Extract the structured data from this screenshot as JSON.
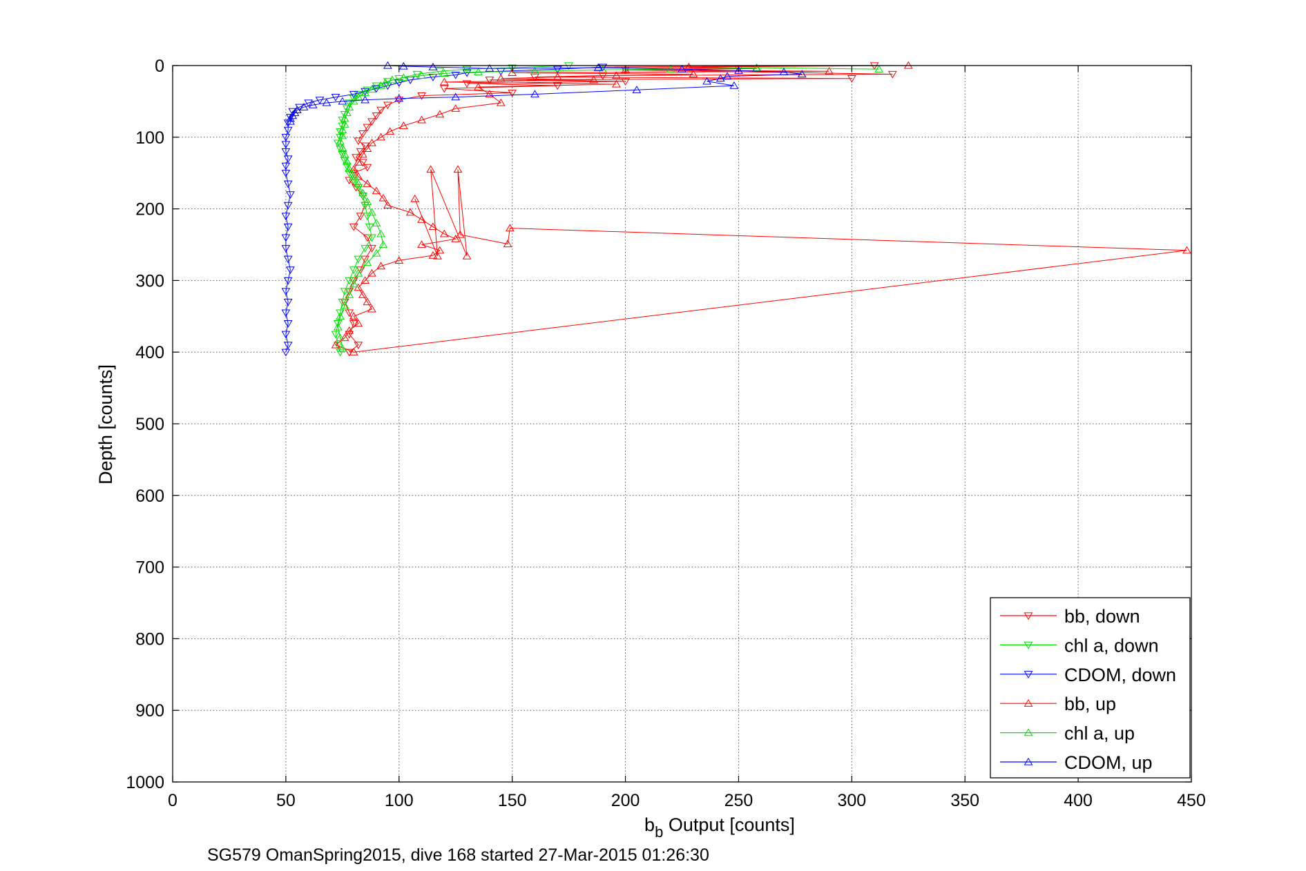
{
  "chart_data": {
    "type": "line",
    "xlabel_main": "b",
    "xlabel_sub": "b",
    "xlabel_rest": " Output [counts]",
    "ylabel": "Depth [counts]",
    "caption": "SG579 OmanSpring2015, dive 168 started 27-Mar-2015 01:26:30",
    "xlim": [
      0,
      450
    ],
    "ylim": [
      0,
      1000
    ],
    "y_reversed": true,
    "grid": true,
    "x_ticks": [
      0,
      50,
      100,
      150,
      200,
      250,
      300,
      350,
      400,
      450
    ],
    "y_ticks": [
      0,
      100,
      200,
      300,
      400,
      500,
      600,
      700,
      800,
      900,
      1000
    ],
    "x_tick_labels": [
      "0",
      "50",
      "100",
      "150",
      "200",
      "250",
      "300",
      "350",
      "400",
      "450"
    ],
    "y_tick_labels": [
      "0",
      "100",
      "200",
      "300",
      "400",
      "500",
      "600",
      "700",
      "800",
      "900",
      "1000"
    ],
    "legend_position": "bottom-right",
    "series": [
      {
        "name": "bb, down",
        "color": "#ff0000",
        "marker": "triangle-down",
        "points": [
          [
            310,
            0
          ],
          [
            190,
            2
          ],
          [
            250,
            4
          ],
          [
            200,
            6
          ],
          [
            318,
            12
          ],
          [
            190,
            14
          ],
          [
            160,
            16
          ],
          [
            300,
            18
          ],
          [
            140,
            20
          ],
          [
            200,
            22
          ],
          [
            130,
            25
          ],
          [
            170,
            28
          ],
          [
            120,
            32
          ],
          [
            150,
            38
          ],
          [
            110,
            42
          ],
          [
            100,
            48
          ],
          [
            95,
            55
          ],
          [
            92,
            62
          ],
          [
            90,
            70
          ],
          [
            88,
            78
          ],
          [
            86,
            86
          ],
          [
            84,
            95
          ],
          [
            82,
            105
          ],
          [
            85,
            112
          ],
          [
            83,
            120
          ],
          [
            81,
            128
          ],
          [
            84,
            135
          ],
          [
            86,
            142
          ],
          [
            80,
            150
          ],
          [
            78,
            160
          ],
          [
            81,
            170
          ],
          [
            84,
            182
          ],
          [
            85,
            195
          ],
          [
            83,
            210
          ],
          [
            80,
            225
          ],
          [
            86,
            240
          ],
          [
            88,
            255
          ],
          [
            85,
            270
          ],
          [
            83,
            285
          ],
          [
            80,
            300
          ],
          [
            78,
            315
          ],
          [
            76,
            330
          ],
          [
            78,
            345
          ],
          [
            80,
            360
          ],
          [
            78,
            375
          ],
          [
            82,
            390
          ],
          [
            78,
            400
          ]
        ]
      },
      {
        "name": "chl a, down",
        "color": "#00dd00",
        "marker": "triangle-down",
        "points": [
          [
            175,
            0
          ],
          [
            150,
            3
          ],
          [
            130,
            5
          ],
          [
            118,
            8
          ],
          [
            108,
            12
          ],
          [
            100,
            18
          ],
          [
            95,
            22
          ],
          [
            90,
            28
          ],
          [
            86,
            34
          ],
          [
            82,
            40
          ],
          [
            80,
            46
          ],
          [
            78,
            52
          ],
          [
            77,
            60
          ],
          [
            76,
            68
          ],
          [
            75,
            76
          ],
          [
            75,
            84
          ],
          [
            74,
            92
          ],
          [
            74,
            100
          ],
          [
            73,
            108
          ],
          [
            74,
            116
          ],
          [
            75,
            124
          ],
          [
            76,
            132
          ],
          [
            77,
            140
          ],
          [
            78,
            150
          ],
          [
            80,
            160
          ],
          [
            82,
            170
          ],
          [
            84,
            182
          ],
          [
            85,
            195
          ],
          [
            86,
            210
          ],
          [
            87,
            225
          ],
          [
            88,
            240
          ],
          [
            85,
            255
          ],
          [
            82,
            270
          ],
          [
            80,
            285
          ],
          [
            78,
            300
          ],
          [
            76,
            315
          ],
          [
            75,
            330
          ],
          [
            74,
            345
          ],
          [
            73,
            360
          ],
          [
            72,
            375
          ],
          [
            73,
            390
          ],
          [
            74,
            400
          ]
        ]
      },
      {
        "name": "CDOM, down",
        "color": "#0000ff",
        "marker": "triangle-down",
        "points": [
          [
            190,
            2
          ],
          [
            170,
            5
          ],
          [
            145,
            8
          ],
          [
            130,
            10
          ],
          [
            125,
            13
          ],
          [
            115,
            16
          ],
          [
            105,
            20
          ],
          [
            100,
            24
          ],
          [
            95,
            28
          ],
          [
            90,
            32
          ],
          [
            85,
            36
          ],
          [
            80,
            40
          ],
          [
            72,
            44
          ],
          [
            65,
            48
          ],
          [
            60,
            52
          ],
          [
            56,
            58
          ],
          [
            53,
            64
          ],
          [
            52,
            72
          ],
          [
            51,
            80
          ],
          [
            51,
            90
          ],
          [
            50,
            100
          ],
          [
            50,
            110
          ],
          [
            50,
            120
          ],
          [
            51,
            130
          ],
          [
            50,
            140
          ],
          [
            50,
            150
          ],
          [
            51,
            165
          ],
          [
            52,
            180
          ],
          [
            51,
            195
          ],
          [
            50,
            210
          ],
          [
            51,
            225
          ],
          [
            50,
            240
          ],
          [
            50,
            255
          ],
          [
            51,
            270
          ],
          [
            52,
            285
          ],
          [
            51,
            300
          ],
          [
            50,
            315
          ],
          [
            51,
            330
          ],
          [
            50,
            345
          ],
          [
            51,
            360
          ],
          [
            50,
            375
          ],
          [
            51,
            390
          ],
          [
            50,
            400
          ]
        ]
      },
      {
        "name": "bb, up",
        "color": "#ff0000",
        "marker": "triangle-up",
        "points": [
          [
            325,
            0
          ],
          [
            228,
            2
          ],
          [
            258,
            4
          ],
          [
            200,
            6
          ],
          [
            290,
            8
          ],
          [
            150,
            10
          ],
          [
            230,
            12
          ],
          [
            196,
            14
          ],
          [
            170,
            16
          ],
          [
            145,
            18
          ],
          [
            186,
            20
          ],
          [
            120,
            23
          ],
          [
            196,
            26
          ],
          [
            135,
            30
          ],
          [
            140,
            40
          ],
          [
            145,
            52
          ],
          [
            125,
            60
          ],
          [
            118,
            68
          ],
          [
            110,
            76
          ],
          [
            102,
            84
          ],
          [
            96,
            92
          ],
          [
            92,
            100
          ],
          [
            88,
            108
          ],
          [
            86,
            116
          ],
          [
            84,
            124
          ],
          [
            82,
            135
          ],
          [
            80,
            145
          ],
          [
            82,
            155
          ],
          [
            86,
            165
          ],
          [
            90,
            175
          ],
          [
            93,
            185
          ],
          [
            95,
            195
          ],
          [
            105,
            205
          ],
          [
            110,
            215
          ],
          [
            115,
            225
          ],
          [
            120,
            235
          ],
          [
            125,
            242
          ],
          [
            110,
            250
          ],
          [
            118,
            258
          ],
          [
            115,
            265
          ],
          [
            100,
            272
          ],
          [
            92,
            280
          ],
          [
            88,
            290
          ],
          [
            85,
            300
          ],
          [
            82,
            310
          ],
          [
            84,
            320
          ],
          [
            86,
            330
          ],
          [
            88,
            340
          ],
          [
            80,
            350
          ],
          [
            82,
            360
          ],
          [
            78,
            370
          ],
          [
            76,
            380
          ],
          [
            72,
            390
          ],
          [
            80,
            400
          ],
          [
            448,
            258
          ],
          [
            149,
            227
          ],
          [
            148,
            249
          ],
          [
            127,
            236
          ],
          [
            126,
            145
          ],
          [
            130,
            266
          ],
          [
            114,
            145
          ],
          [
            117,
            266
          ],
          [
            107,
            186
          ]
        ]
      },
      {
        "name": "chl a, up",
        "color": "#00dd00",
        "marker": "triangle-up",
        "points": [
          [
            312,
            5
          ],
          [
            258,
            3
          ],
          [
            220,
            5
          ],
          [
            190,
            6
          ],
          [
            160,
            8
          ],
          [
            135,
            9
          ],
          [
            120,
            11
          ],
          [
            110,
            14
          ],
          [
            102,
            17
          ],
          [
            97,
            20
          ],
          [
            94,
            24
          ],
          [
            92,
            28
          ],
          [
            88,
            33
          ],
          [
            85,
            38
          ],
          [
            82,
            44
          ],
          [
            80,
            50
          ],
          [
            78,
            58
          ],
          [
            77,
            66
          ],
          [
            76,
            74
          ],
          [
            76,
            82
          ],
          [
            75,
            90
          ],
          [
            75,
            98
          ],
          [
            74,
            106
          ],
          [
            75,
            115
          ],
          [
            76,
            124
          ],
          [
            77,
            134
          ],
          [
            78,
            144
          ],
          [
            80,
            155
          ],
          [
            82,
            165
          ],
          [
            84,
            178
          ],
          [
            86,
            190
          ],
          [
            88,
            205
          ],
          [
            90,
            220
          ],
          [
            92,
            235
          ],
          [
            93,
            250
          ],
          [
            90,
            262
          ],
          [
            86,
            275
          ],
          [
            82,
            290
          ],
          [
            80,
            305
          ],
          [
            78,
            320
          ],
          [
            76,
            335
          ],
          [
            74,
            350
          ],
          [
            73,
            365
          ],
          [
            74,
            380
          ],
          [
            75,
            395
          ]
        ]
      },
      {
        "name": "CDOM, up",
        "color": "#0000ff",
        "marker": "triangle-up",
        "points": [
          [
            95,
            0
          ],
          [
            102,
            1
          ],
          [
            115,
            2
          ],
          [
            140,
            4
          ],
          [
            188,
            3
          ],
          [
            225,
            5
          ],
          [
            250,
            7
          ],
          [
            270,
            9
          ],
          [
            278,
            12
          ],
          [
            245,
            15
          ],
          [
            242,
            18
          ],
          [
            236,
            22
          ],
          [
            248,
            28
          ],
          [
            205,
            34
          ],
          [
            160,
            40
          ],
          [
            125,
            44
          ],
          [
            100,
            46
          ],
          [
            85,
            48
          ],
          [
            75,
            50
          ],
          [
            68,
            52
          ],
          [
            62,
            55
          ],
          [
            58,
            58
          ],
          [
            55,
            62
          ],
          [
            54,
            66
          ],
          [
            53,
            70
          ],
          [
            52,
            74
          ],
          [
            52,
            78
          ]
        ]
      }
    ]
  }
}
